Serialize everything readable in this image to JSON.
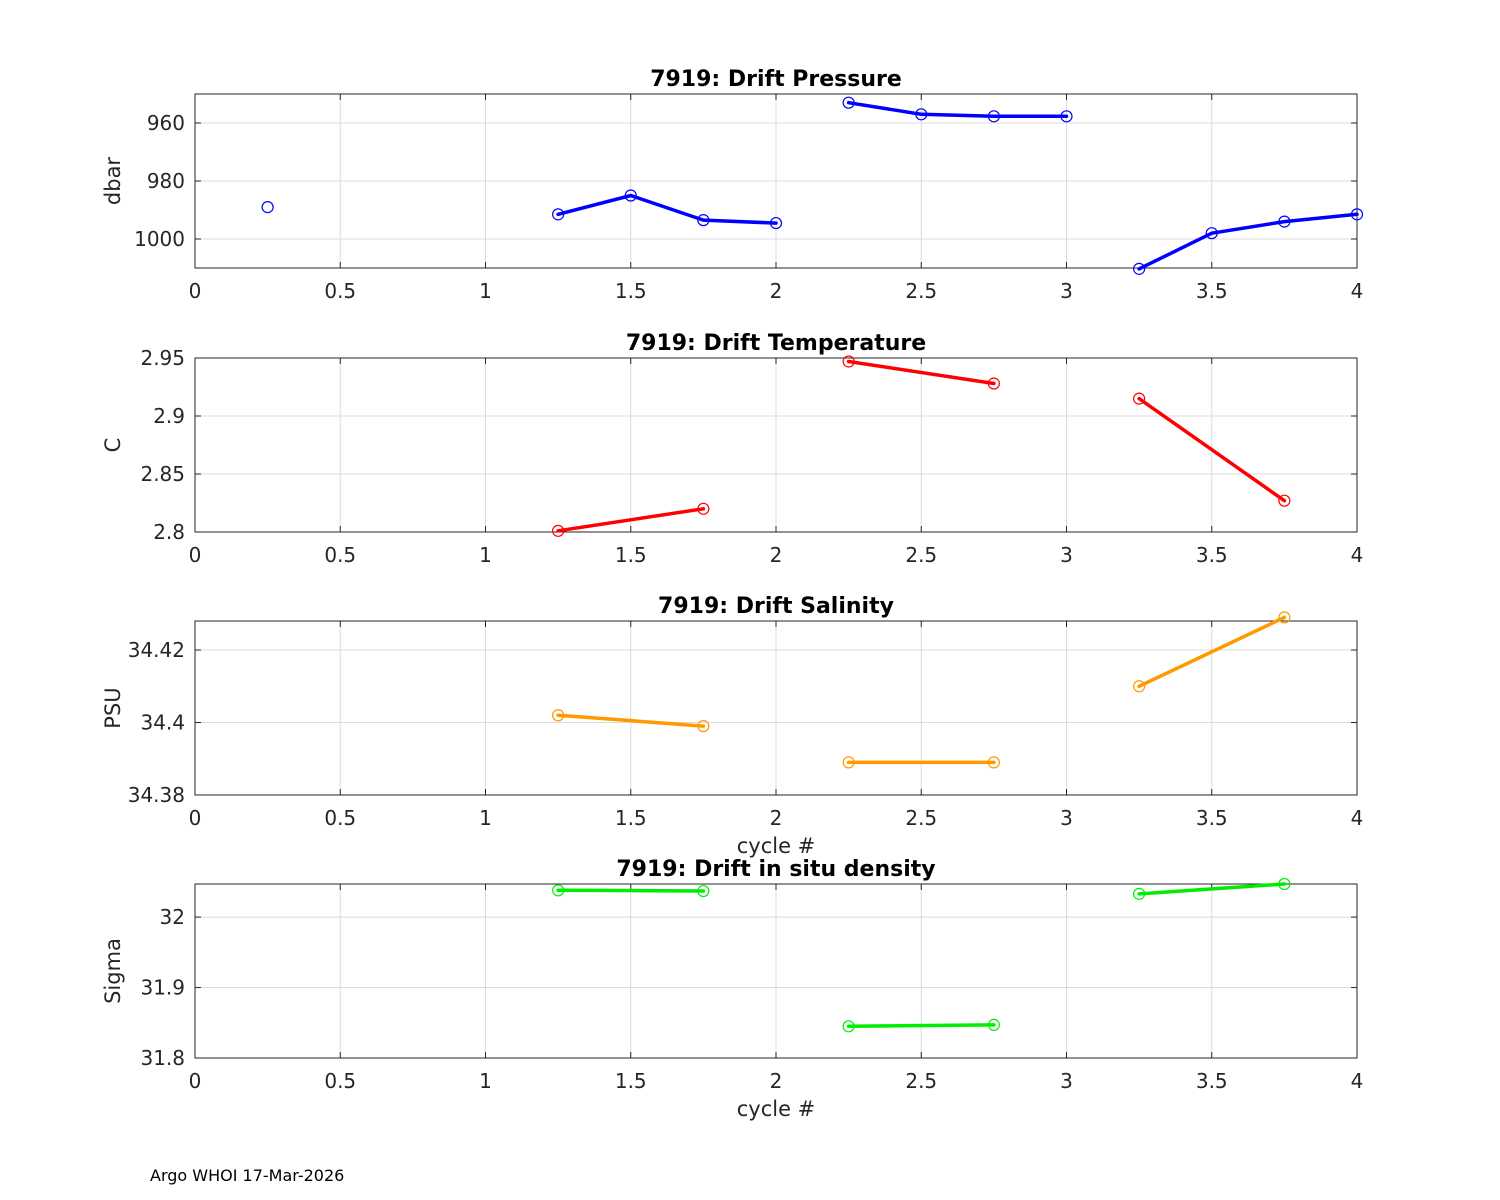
{
  "footer": "Argo WHOI 17-Mar-2026",
  "chart_data": [
    {
      "type": "line",
      "title": "7919: Drift Pressure",
      "xlabel": "",
      "ylabel": "dbar",
      "xlim": [
        0,
        4
      ],
      "ylim": [
        950,
        1010
      ],
      "y_reversed": true,
      "xticks": [
        "0",
        "0.5",
        "1",
        "1.5",
        "2",
        "2.5",
        "3",
        "3.5",
        "4"
      ],
      "yticks": [
        "960",
        "980",
        "1000"
      ],
      "grid": true,
      "color": "#0000ff",
      "series": [
        {
          "x": [
            0.25
          ],
          "y": [
            989
          ]
        },
        {
          "x": [
            1.25,
            1.5,
            1.75,
            2.0
          ],
          "y": [
            991.5,
            985,
            993.5,
            994.5
          ]
        },
        {
          "x": [
            2.25,
            2.5,
            2.75,
            3.0
          ],
          "y": [
            953,
            957,
            957.7,
            957.7
          ]
        },
        {
          "x": [
            3.25,
            3.5,
            3.75,
            4.0
          ],
          "y": [
            1010.3,
            998,
            994,
            991.5
          ]
        }
      ]
    },
    {
      "type": "line",
      "title": "7919: Drift Temperature",
      "xlabel": "",
      "ylabel": "C",
      "xlim": [
        0,
        4
      ],
      "ylim": [
        2.8,
        2.95
      ],
      "y_reversed": false,
      "xticks": [
        "0",
        "0.5",
        "1",
        "1.5",
        "2",
        "2.5",
        "3",
        "3.5",
        "4"
      ],
      "yticks": [
        "2.8",
        "2.85",
        "2.9",
        "2.95"
      ],
      "grid": true,
      "color": "#ff0000",
      "series": [
        {
          "x": [
            1.25,
            1.75
          ],
          "y": [
            2.801,
            2.82
          ]
        },
        {
          "x": [
            2.25,
            2.75
          ],
          "y": [
            2.947,
            2.928
          ]
        },
        {
          "x": [
            3.25,
            3.75
          ],
          "y": [
            2.915,
            2.827
          ]
        }
      ]
    },
    {
      "type": "line",
      "title": "7919: Drift Salinity",
      "xlabel": "cycle #",
      "ylabel": "PSU",
      "xlim": [
        0,
        4
      ],
      "ylim": [
        34.38,
        34.428
      ],
      "y_reversed": false,
      "xticks": [
        "0",
        "0.5",
        "1",
        "1.5",
        "2",
        "2.5",
        "3",
        "3.5",
        "4"
      ],
      "yticks": [
        "34.38",
        "34.4",
        "34.42"
      ],
      "grid": true,
      "color": "#ff9900",
      "series": [
        {
          "x": [
            1.25,
            1.75
          ],
          "y": [
            34.402,
            34.399
          ]
        },
        {
          "x": [
            2.25,
            2.75
          ],
          "y": [
            34.389,
            34.389
          ]
        },
        {
          "x": [
            3.25,
            3.75
          ],
          "y": [
            34.41,
            34.429
          ]
        }
      ]
    },
    {
      "type": "line",
      "title": "7919: Drift in situ density",
      "xlabel": "cycle #",
      "ylabel": "Sigma",
      "xlim": [
        0,
        4
      ],
      "ylim": [
        31.8,
        32.047
      ],
      "y_reversed": false,
      "xticks": [
        "0",
        "0.5",
        "1",
        "1.5",
        "2",
        "2.5",
        "3",
        "3.5",
        "4"
      ],
      "yticks": [
        "31.8",
        "31.9",
        "32"
      ],
      "grid": true,
      "color": "#00ee00",
      "series": [
        {
          "x": [
            1.25,
            1.75
          ],
          "y": [
            32.038,
            32.037
          ]
        },
        {
          "x": [
            2.25,
            2.75
          ],
          "y": [
            31.845,
            31.847
          ]
        },
        {
          "x": [
            3.25,
            3.75
          ],
          "y": [
            32.033,
            32.047
          ]
        }
      ]
    }
  ]
}
